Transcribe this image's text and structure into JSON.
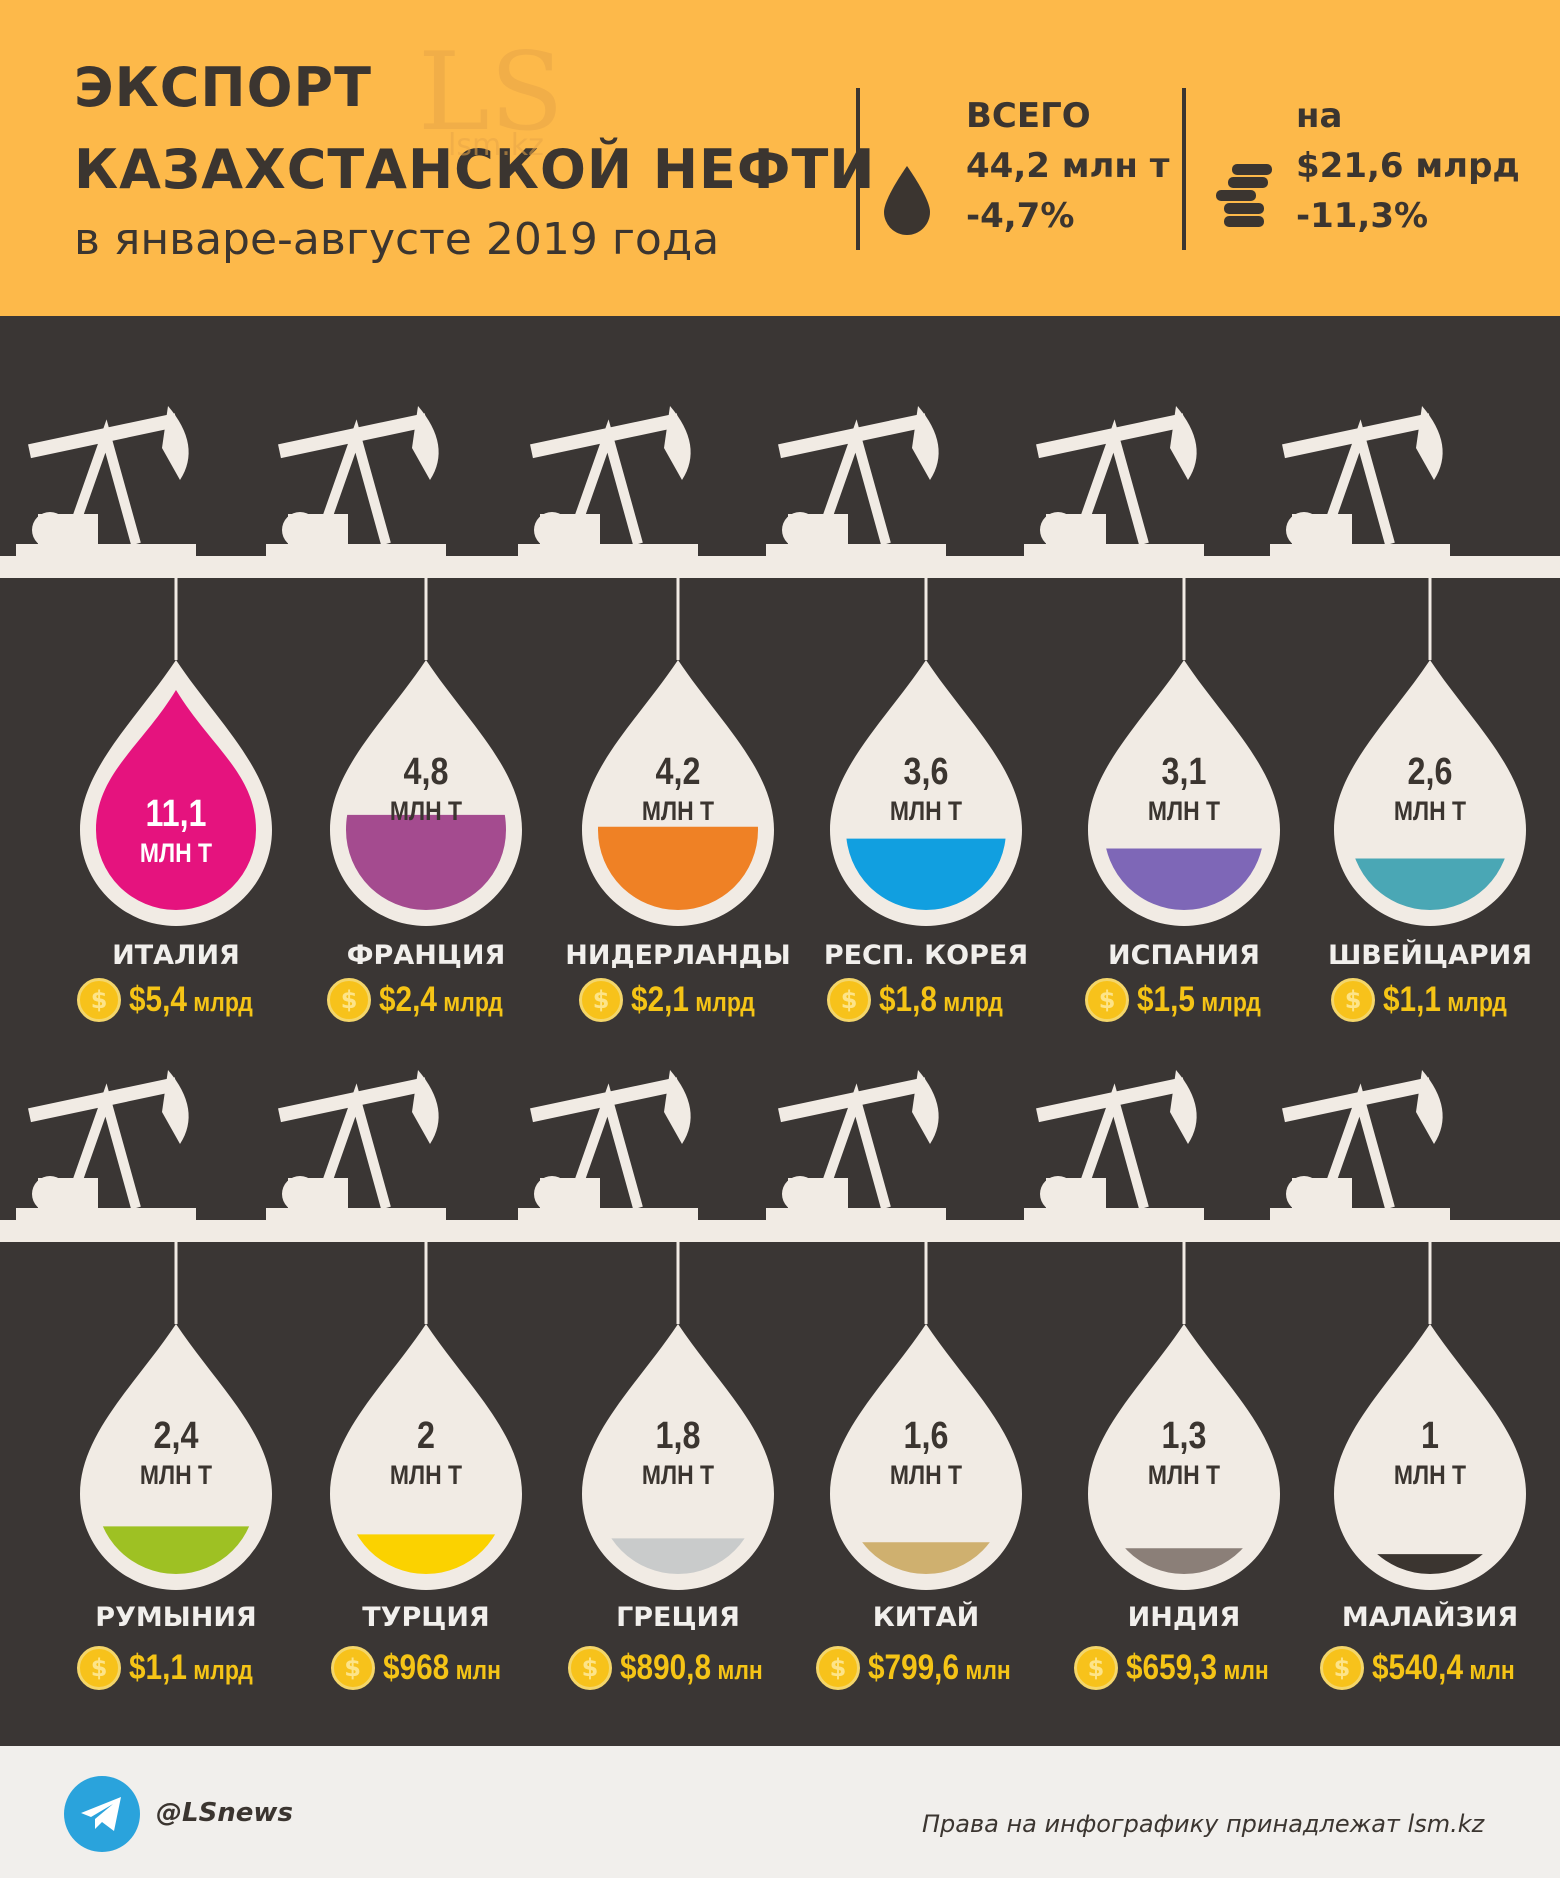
{
  "header": {
    "title_line1": "ЭКСПОРТ",
    "title_line2": "КАЗАХСТАНСКОЙ НЕФТИ",
    "subtitle": "в январе-августе 2019 года",
    "total": {
      "label": "ВСЕГО",
      "value": "44,2 млн т",
      "change": "-4,7%"
    },
    "worth": {
      "label": "на",
      "value": "$21,6 млрд",
      "change": "-11,3%"
    },
    "drop_icon": "oil-drop-icon",
    "coins_icon": "coins-stack-icon"
  },
  "watermark": {
    "logo": "LS",
    "site": "lsm.kz"
  },
  "chart_data": {
    "type": "bar",
    "categories": [
      "ИТАЛИЯ",
      "ФРАНЦИЯ",
      "НИДЕРЛАНДЫ",
      "РЕСП. КОРЕЯ",
      "ИСПАНИЯ",
      "ШВЕЙЦАРИЯ",
      "РУМЫНИЯ",
      "ТУРЦИЯ",
      "ГРЕЦИЯ",
      "КИТАЙ",
      "ИНДИЯ",
      "МАЛАЙЗИЯ"
    ],
    "volume_mln_t": [
      11.1,
      4.8,
      4.2,
      3.6,
      3.1,
      2.6,
      2.4,
      2,
      1.8,
      1.6,
      1.3,
      1
    ],
    "volume_labels": [
      "11,1",
      "4,8",
      "4,2",
      "3,6",
      "3,1",
      "2,6",
      "2,4",
      "2",
      "1,8",
      "1,6",
      "1,3",
      "1"
    ],
    "volume_unit": "МЛН Т",
    "value_usd_labels": [
      "$5,4",
      "$2,4",
      "$2,1",
      "$1,8",
      "$1,5",
      "$1,1",
      "$1,1",
      "$968",
      "$890,8",
      "$799,6",
      "$659,3",
      "$540,4"
    ],
    "value_units": [
      "млрд",
      "млрд",
      "млрд",
      "млрд",
      "млрд",
      "млрд",
      "млрд",
      "млн",
      "млн",
      "млн",
      "млн",
      "млн"
    ],
    "colors": [
      "#e5137e",
      "#a44b8f",
      "#ef8125",
      "#119fe0",
      "#7e67b7",
      "#4aa7b5",
      "#9ec123",
      "#fbd200",
      "#c9cbcb",
      "#cfb06f",
      "#8b7f78",
      "#3b3530"
    ],
    "coin_symbol": "$"
  },
  "footer": {
    "telegram_icon": "telegram-icon",
    "handle": "@LSnews",
    "rights": "Права на инфографику принадлежат lsm.kz"
  }
}
